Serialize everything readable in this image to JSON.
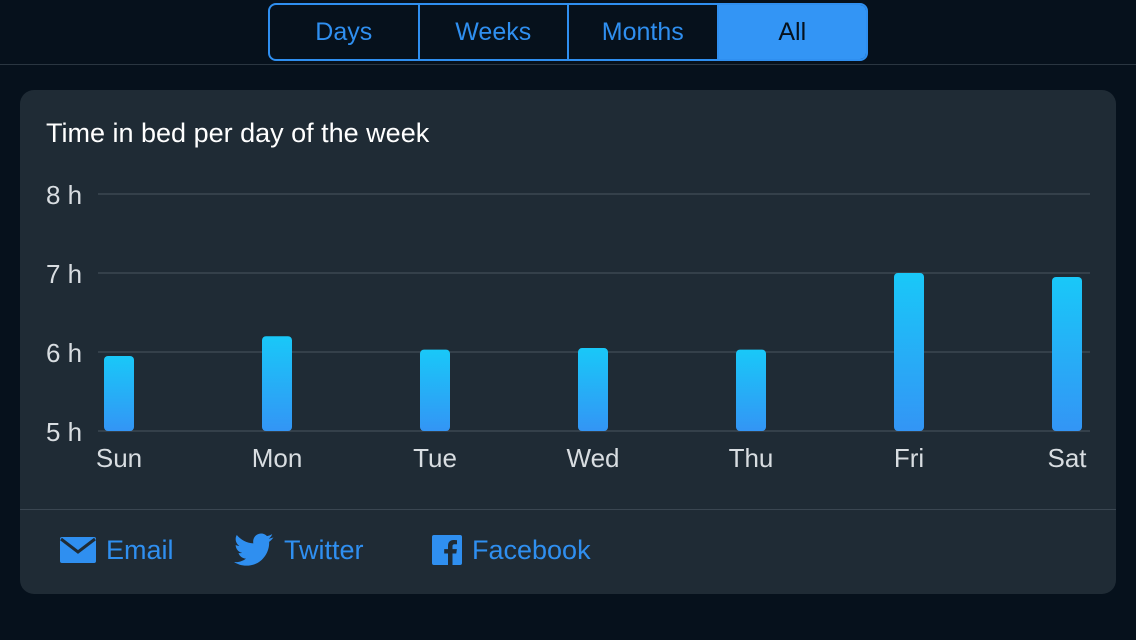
{
  "segments": [
    {
      "label": "Days",
      "active": false
    },
    {
      "label": "Weeks",
      "active": false
    },
    {
      "label": "Months",
      "active": false
    },
    {
      "label": "All",
      "active": true
    }
  ],
  "card": {
    "title": "Time in bed per day of the week"
  },
  "chart_data": {
    "type": "bar",
    "title": "Time in bed per day of the week",
    "categories": [
      "Sun",
      "Mon",
      "Tue",
      "Wed",
      "Thu",
      "Fri",
      "Sat"
    ],
    "values": [
      5.95,
      6.2,
      6.03,
      6.05,
      6.03,
      7.0,
      6.95
    ],
    "y_ticks": [
      "5 h",
      "6 h",
      "7 h",
      "8 h"
    ],
    "ylim": [
      5,
      8
    ],
    "grid": true,
    "colors": {
      "bar_top": "#19c8f8",
      "bar_bottom": "#3395f5",
      "grid": "#4a555e",
      "label": "#d8dde1"
    }
  },
  "share": {
    "email_label": "Email",
    "twitter_label": "Twitter",
    "facebook_label": "Facebook",
    "accent": "#2f8ff0"
  }
}
